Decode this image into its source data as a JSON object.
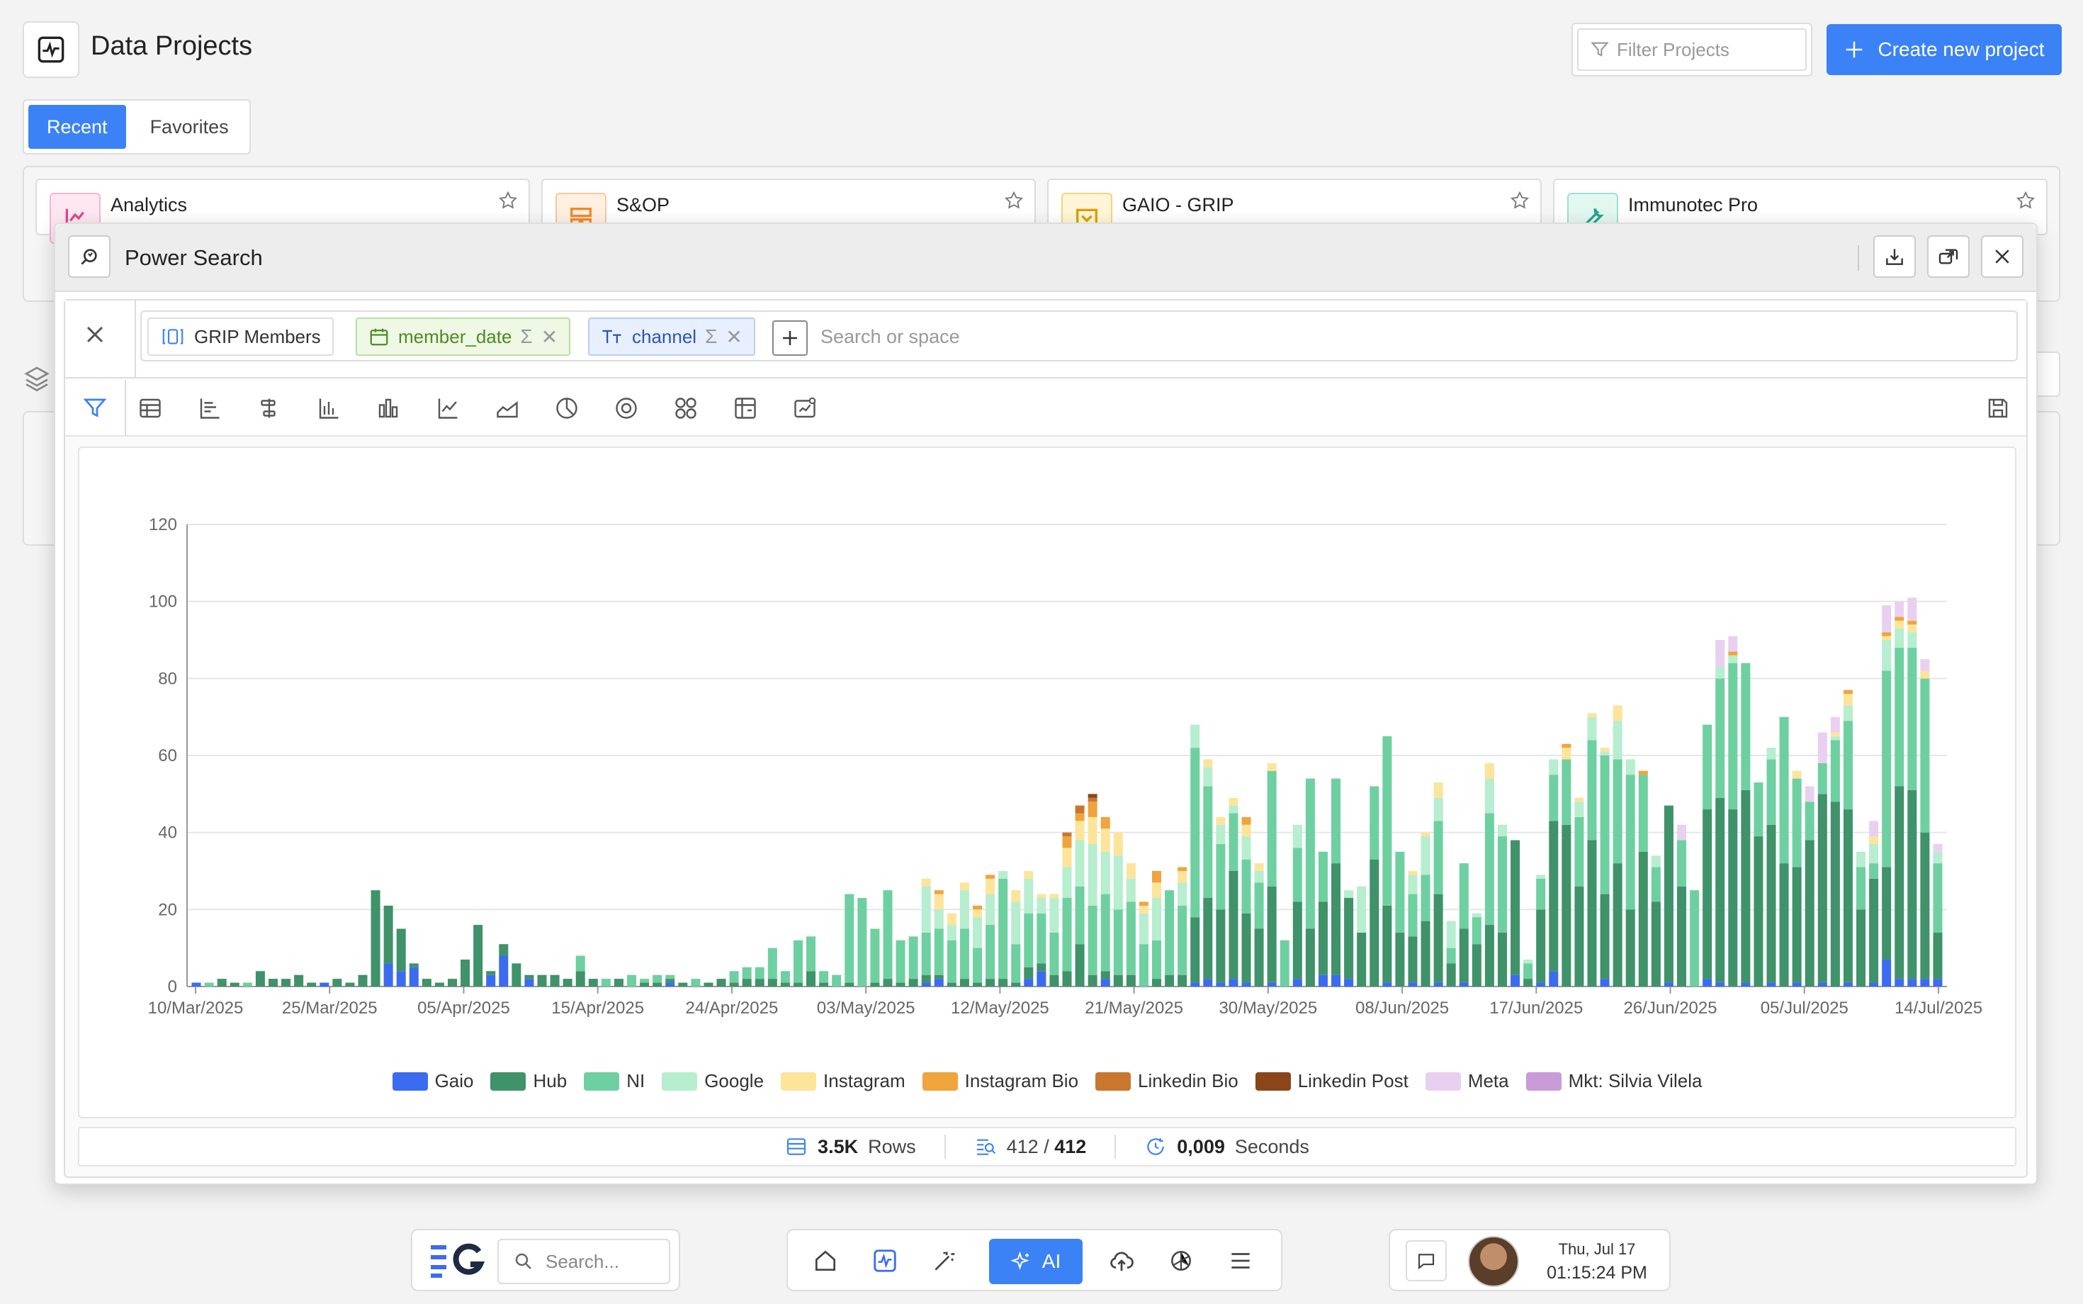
{
  "app": {
    "title": "Data Projects"
  },
  "filter": {
    "placeholder": "Filter Projects"
  },
  "create_button": {
    "label": "Create new project"
  },
  "tabs": [
    {
      "label": "Recent",
      "active": true
    },
    {
      "label": "Favorites",
      "active": false
    }
  ],
  "projects": [
    {
      "name": "Analytics",
      "color": "#e0498d"
    },
    {
      "name": "S&OP",
      "color": "#f08a2b"
    },
    {
      "name": "GAIO - GRIP",
      "color": "#e0a800"
    },
    {
      "name": "Immunotec Pro",
      "color": "#22a58b"
    }
  ],
  "modal": {
    "title": "Power Search",
    "query": {
      "source": "GRIP Members",
      "chips": [
        {
          "label": "member_date",
          "kind": "date"
        },
        {
          "label": "channel",
          "kind": "text"
        }
      ],
      "search_placeholder": "Search or space"
    }
  },
  "chart_data": {
    "type": "bar",
    "stacked": true,
    "ylim": [
      0,
      120
    ],
    "yticks": [
      0,
      20,
      40,
      60,
      80,
      100,
      120
    ],
    "grid": true,
    "legend_position": "bottom",
    "x_tick_labels": [
      "10/Mar/2025",
      "25/Mar/2025",
      "05/Apr/2025",
      "15/Apr/2025",
      "24/Apr/2025",
      "03/May/2025",
      "12/May/2025",
      "21/May/2025",
      "30/May/2025",
      "08/Jun/2025",
      "17/Jun/2025",
      "26/Jun/2025",
      "05/Jul/2025",
      "14/Jul/2025"
    ],
    "series_colors": [
      "#3b6cf0",
      "#3f9269",
      "#6ed0a0",
      "#b6eecf",
      "#fce49a",
      "#f0a43c",
      "#c9762e",
      "#8a4518",
      "#ead0f0",
      "#c99ad8"
    ],
    "series_names": [
      "Gaio",
      "Hub",
      "NI",
      "Google",
      "Instagram",
      "Instagram Bio",
      "Linkedin Bio",
      "Linkedin Post",
      "Meta",
      "Mkt: Silvia Vilela"
    ],
    "stacks": [
      [
        1,
        0,
        0,
        0,
        0,
        0,
        0,
        0,
        0,
        0
      ],
      [
        0,
        0,
        1,
        0,
        0,
        0,
        0,
        0,
        0,
        0
      ],
      [
        0,
        2,
        0,
        0,
        0,
        0,
        0,
        0,
        0,
        0
      ],
      [
        0,
        1,
        0,
        0,
        0,
        0,
        0,
        0,
        0,
        0
      ],
      [
        0,
        0,
        1,
        0,
        0,
        0,
        0,
        0,
        0,
        0
      ],
      [
        0,
        4,
        0,
        0,
        0,
        0,
        0,
        0,
        0,
        0
      ],
      [
        0,
        2,
        0,
        0,
        0,
        0,
        0,
        0,
        0,
        0
      ],
      [
        0,
        2,
        0,
        0,
        0,
        0,
        0,
        0,
        0,
        0
      ],
      [
        0,
        3,
        0,
        0,
        0,
        0,
        0,
        0,
        0,
        0
      ],
      [
        0,
        1,
        0,
        0,
        0,
        0,
        0,
        0,
        0,
        0
      ],
      [
        1,
        0,
        0,
        0,
        0,
        0,
        0,
        0,
        0,
        0
      ],
      [
        0,
        2,
        0,
        0,
        0,
        0,
        0,
        0,
        0,
        0
      ],
      [
        0,
        1,
        0,
        0,
        0,
        0,
        0,
        0,
        0,
        0
      ],
      [
        0,
        3,
        0,
        0,
        0,
        0,
        0,
        0,
        0,
        0
      ],
      [
        0,
        25,
        0,
        0,
        0,
        0,
        0,
        0,
        0,
        0
      ],
      [
        6,
        15,
        0,
        0,
        0,
        0,
        0,
        0,
        0,
        0
      ],
      [
        4,
        11,
        0,
        0,
        0,
        0,
        0,
        0,
        0,
        0
      ],
      [
        5,
        1,
        0,
        0,
        0,
        0,
        0,
        0,
        0,
        0
      ],
      [
        0,
        2,
        0,
        0,
        0,
        0,
        0,
        0,
        0,
        0
      ],
      [
        0,
        1,
        0,
        0,
        0,
        0,
        0,
        0,
        0,
        0
      ],
      [
        0,
        2,
        0,
        0,
        0,
        0,
        0,
        0,
        0,
        0
      ],
      [
        0,
        7,
        0,
        0,
        0,
        0,
        0,
        0,
        0,
        0
      ],
      [
        0,
        16,
        0,
        0,
        0,
        0,
        0,
        0,
        0,
        0
      ],
      [
        3,
        1,
        0,
        0,
        0,
        0,
        0,
        0,
        0,
        0
      ],
      [
        8,
        3,
        0,
        0,
        0,
        0,
        0,
        0,
        0,
        0
      ],
      [
        0,
        6,
        0,
        0,
        0,
        0,
        0,
        0,
        0,
        0
      ],
      [
        2,
        1,
        0,
        0,
        0,
        0,
        0,
        0,
        0,
        0
      ],
      [
        0,
        3,
        0,
        0,
        0,
        0,
        0,
        0,
        0,
        0
      ],
      [
        0,
        3,
        0,
        0,
        0,
        0,
        0,
        0,
        0,
        0
      ],
      [
        0,
        2,
        0,
        0,
        0,
        0,
        0,
        0,
        0,
        0
      ],
      [
        0,
        4,
        4,
        0,
        0,
        0,
        0,
        0,
        0,
        0
      ],
      [
        0,
        2,
        0,
        0,
        0,
        0,
        0,
        0,
        0,
        0
      ],
      [
        0,
        0,
        2,
        0,
        0,
        0,
        0,
        0,
        0,
        0
      ],
      [
        0,
        2,
        0,
        0,
        0,
        0,
        0,
        0,
        0,
        0
      ],
      [
        0,
        0,
        3,
        0,
        0,
        0,
        0,
        0,
        0,
        0
      ],
      [
        0,
        1,
        1,
        0,
        0,
        0,
        0,
        0,
        0,
        0
      ],
      [
        0,
        1,
        2,
        0,
        0,
        0,
        0,
        0,
        0,
        0
      ],
      [
        1,
        1,
        1,
        0,
        0,
        0,
        0,
        0,
        0,
        0
      ],
      [
        0,
        1,
        0,
        0,
        0,
        0,
        0,
        0,
        0,
        0
      ],
      [
        0,
        0,
        2,
        0,
        0,
        0,
        0,
        0,
        0,
        0
      ],
      [
        0,
        1,
        0,
        0,
        0,
        0,
        0,
        0,
        0,
        0
      ],
      [
        0,
        2,
        0,
        0,
        0,
        0,
        0,
        0,
        0,
        0
      ],
      [
        0,
        1,
        3,
        0,
        0,
        0,
        0,
        0,
        0,
        0
      ],
      [
        0,
        2,
        3,
        0,
        0,
        0,
        0,
        0,
        0,
        0
      ],
      [
        0,
        2,
        3,
        0,
        0,
        0,
        0,
        0,
        0,
        0
      ],
      [
        0,
        2,
        8,
        0,
        0,
        0,
        0,
        0,
        0,
        0
      ],
      [
        0,
        1,
        3,
        0,
        0,
        0,
        0,
        0,
        0,
        0
      ],
      [
        0,
        1,
        11,
        0,
        0,
        0,
        0,
        0,
        0,
        0
      ],
      [
        0,
        4,
        9,
        0,
        0,
        0,
        0,
        0,
        0,
        0
      ],
      [
        0,
        1,
        3,
        0,
        0,
        0,
        0,
        0,
        0,
        0
      ],
      [
        0,
        0,
        3,
        0,
        0,
        0,
        0,
        0,
        0,
        0
      ],
      [
        0,
        1,
        23,
        0,
        0,
        0,
        0,
        0,
        0,
        0
      ],
      [
        0,
        0,
        23,
        0,
        0,
        0,
        0,
        0,
        0,
        0
      ],
      [
        0,
        1,
        14,
        0,
        0,
        0,
        0,
        0,
        0,
        0
      ],
      [
        0,
        2,
        23,
        0,
        0,
        0,
        0,
        0,
        0,
        0
      ],
      [
        0,
        1,
        11,
        0,
        0,
        0,
        0,
        0,
        0,
        0
      ],
      [
        0,
        2,
        11,
        0,
        0,
        0,
        0,
        0,
        0,
        0
      ],
      [
        1,
        2,
        11,
        12,
        2,
        0,
        0,
        0,
        0,
        0
      ],
      [
        2,
        1,
        12,
        5,
        4,
        1,
        0,
        0,
        0,
        0
      ],
      [
        0,
        1,
        11,
        4,
        3,
        0,
        0,
        0,
        0,
        0
      ],
      [
        0,
        2,
        13,
        10,
        2,
        0,
        0,
        0,
        0,
        0
      ],
      [
        0,
        1,
        9,
        8,
        2,
        1,
        0,
        0,
        0,
        0
      ],
      [
        0,
        2,
        14,
        8,
        4,
        1,
        0,
        0,
        0,
        0
      ],
      [
        0,
        2,
        26,
        2,
        0,
        0,
        0,
        0,
        0,
        0
      ],
      [
        0,
        1,
        10,
        11,
        3,
        0,
        0,
        0,
        0,
        0
      ],
      [
        2,
        3,
        14,
        9,
        2,
        0,
        0,
        0,
        0,
        0
      ],
      [
        4,
        2,
        13,
        4,
        1,
        0,
        0,
        0,
        0,
        0
      ],
      [
        0,
        3,
        11,
        9,
        1,
        0,
        0,
        0,
        0,
        0
      ],
      [
        0,
        4,
        19,
        8,
        5,
        3,
        1,
        0,
        0,
        0
      ],
      [
        0,
        11,
        15,
        12,
        5,
        2,
        2,
        0,
        0,
        0
      ],
      [
        0,
        3,
        18,
        16,
        7,
        4,
        1,
        1,
        0,
        0
      ],
      [
        2,
        2,
        20,
        11,
        6,
        3,
        0,
        0,
        0,
        0
      ],
      [
        0,
        3,
        17,
        14,
        6,
        0,
        0,
        0,
        0,
        0
      ],
      [
        0,
        3,
        19,
        6,
        4,
        0,
        0,
        0,
        0,
        0
      ],
      [
        0,
        0,
        11,
        8,
        2,
        1,
        0,
        0,
        0,
        0
      ],
      [
        0,
        2,
        10,
        11,
        4,
        3,
        0,
        0,
        0,
        0
      ],
      [
        0,
        3,
        22,
        0,
        0,
        0,
        0,
        0,
        0,
        0
      ],
      [
        0,
        3,
        18,
        6,
        3,
        1,
        0,
        0,
        0,
        0
      ],
      [
        1,
        17,
        44,
        6,
        0,
        0,
        0,
        0,
        0,
        0
      ],
      [
        2,
        21,
        29,
        5,
        2,
        0,
        0,
        0,
        0,
        0
      ],
      [
        1,
        19,
        17,
        5,
        2,
        0,
        0,
        0,
        0,
        0
      ],
      [
        2,
        28,
        15,
        2,
        2,
        0,
        0,
        0,
        0,
        0
      ],
      [
        1,
        18,
        14,
        6,
        3,
        2,
        0,
        0,
        0,
        0
      ],
      [
        0,
        15,
        12,
        3,
        2,
        0,
        0,
        0,
        0,
        0
      ],
      [
        1,
        25,
        30,
        0,
        2,
        0,
        0,
        0,
        0,
        0
      ],
      [
        0,
        0,
        12,
        0,
        0,
        0,
        0,
        0,
        0,
        0
      ],
      [
        2,
        20,
        14,
        6,
        0,
        0,
        0,
        0,
        0,
        0
      ],
      [
        0,
        15,
        39,
        0,
        0,
        0,
        0,
        0,
        0,
        0
      ],
      [
        3,
        19,
        13,
        0,
        0,
        0,
        0,
        0,
        0,
        0
      ],
      [
        3,
        29,
        22,
        0,
        0,
        0,
        0,
        0,
        0,
        0
      ],
      [
        2,
        21,
        0,
        2,
        0,
        0,
        0,
        0,
        0,
        0
      ],
      [
        0,
        14,
        0,
        12,
        0,
        0,
        0,
        0,
        0,
        0
      ],
      [
        0,
        33,
        19,
        0,
        0,
        0,
        0,
        0,
        0,
        0
      ],
      [
        1,
        20,
        44,
        0,
        0,
        0,
        0,
        0,
        0,
        0
      ],
      [
        0,
        14,
        21,
        0,
        0,
        0,
        0,
        0,
        0,
        0
      ],
      [
        1,
        12,
        11,
        5,
        1,
        0,
        0,
        0,
        0,
        0
      ],
      [
        0,
        17,
        12,
        10,
        1,
        0,
        0,
        0,
        0,
        0
      ],
      [
        1,
        23,
        19,
        6,
        4,
        0,
        0,
        0,
        0,
        0
      ],
      [
        0,
        6,
        4,
        7,
        0,
        0,
        0,
        0,
        0,
        0
      ],
      [
        1,
        14,
        17,
        0,
        0,
        0,
        0,
        0,
        0,
        0
      ],
      [
        0,
        11,
        7,
        1,
        0,
        0,
        0,
        0,
        0,
        0
      ],
      [
        0,
        16,
        29,
        9,
        4,
        0,
        0,
        0,
        0,
        0
      ],
      [
        0,
        14,
        25,
        3,
        0,
        0,
        0,
        0,
        0,
        0
      ],
      [
        3,
        35,
        0,
        0,
        0,
        0,
        0,
        0,
        0,
        0
      ],
      [
        0,
        2,
        4,
        1,
        0,
        0,
        0,
        0,
        0,
        0
      ],
      [
        1,
        19,
        8,
        1,
        0,
        0,
        0,
        0,
        0,
        0
      ],
      [
        4,
        39,
        12,
        4,
        0,
        0,
        0,
        0,
        0,
        0
      ],
      [
        0,
        42,
        17,
        0,
        3,
        1,
        0,
        0,
        0,
        0
      ],
      [
        0,
        26,
        18,
        4,
        1,
        0,
        0,
        0,
        0,
        0
      ],
      [
        0,
        38,
        26,
        6,
        1,
        0,
        0,
        0,
        0,
        0
      ],
      [
        2,
        22,
        36,
        1,
        1,
        0,
        0,
        0,
        0,
        0
      ],
      [
        0,
        32,
        27,
        10,
        4,
        0,
        0,
        0,
        0,
        0
      ],
      [
        0,
        20,
        35,
        4,
        0,
        0,
        0,
        0,
        0,
        0
      ],
      [
        0,
        35,
        20,
        0,
        0,
        1,
        0,
        0,
        0,
        0
      ],
      [
        0,
        22,
        9,
        3,
        0,
        0,
        0,
        0,
        0,
        0
      ],
      [
        1,
        46,
        0,
        0,
        0,
        0,
        0,
        0,
        0,
        0
      ],
      [
        0,
        26,
        12,
        0,
        0,
        0,
        0,
        0,
        4,
        0
      ],
      [
        0,
        0,
        25,
        0,
        0,
        0,
        0,
        0,
        0,
        0
      ],
      [
        2,
        44,
        22,
        0,
        0,
        0,
        0,
        0,
        0,
        0
      ],
      [
        1,
        48,
        31,
        3,
        0,
        0,
        0,
        0,
        7,
        0
      ],
      [
        0,
        46,
        38,
        2,
        0,
        1,
        0,
        0,
        4,
        0
      ],
      [
        1,
        50,
        33,
        0,
        0,
        0,
        0,
        0,
        0,
        0
      ],
      [
        0,
        39,
        14,
        0,
        0,
        0,
        0,
        0,
        0,
        0
      ],
      [
        1,
        41,
        17,
        3,
        0,
        0,
        0,
        0,
        0,
        0
      ],
      [
        0,
        32,
        38,
        0,
        0,
        0,
        0,
        0,
        0,
        0
      ],
      [
        1,
        30,
        23,
        0,
        2,
        0,
        0,
        0,
        0,
        0
      ],
      [
        0,
        38,
        10,
        0,
        0,
        0,
        0,
        0,
        4,
        0
      ],
      [
        1,
        49,
        8,
        0,
        0,
        0,
        0,
        0,
        8,
        0
      ],
      [
        0,
        48,
        16,
        1,
        1,
        0,
        0,
        0,
        4,
        0
      ],
      [
        1,
        45,
        23,
        4,
        3,
        1,
        0,
        0,
        0,
        0
      ],
      [
        0,
        20,
        11,
        4,
        0,
        0,
        0,
        0,
        0,
        0
      ],
      [
        1,
        27,
        4,
        5,
        2,
        0,
        0,
        0,
        4,
        0
      ],
      [
        7,
        24,
        51,
        8,
        1,
        1,
        0,
        0,
        7,
        0
      ],
      [
        2,
        50,
        36,
        5,
        2,
        1,
        0,
        0,
        4,
        0
      ],
      [
        2,
        49,
        37,
        4,
        2,
        1,
        0,
        0,
        6,
        0
      ],
      [
        2,
        38,
        40,
        0,
        2,
        0,
        0,
        0,
        3,
        0
      ],
      [
        2,
        12,
        18,
        3,
        0,
        0,
        0,
        0,
        2,
        0
      ]
    ]
  },
  "status": {
    "rows_value": "3.5K",
    "rows_label": "Rows",
    "results_a": "412",
    "results_sep": "/",
    "results_b": "412",
    "time_value": "0,009",
    "time_label": "Seconds"
  },
  "dock": {
    "search_placeholder": "Search...",
    "ai_label": "AI",
    "date": "Thu, Jul 17",
    "time": "01:15:24 PM"
  }
}
